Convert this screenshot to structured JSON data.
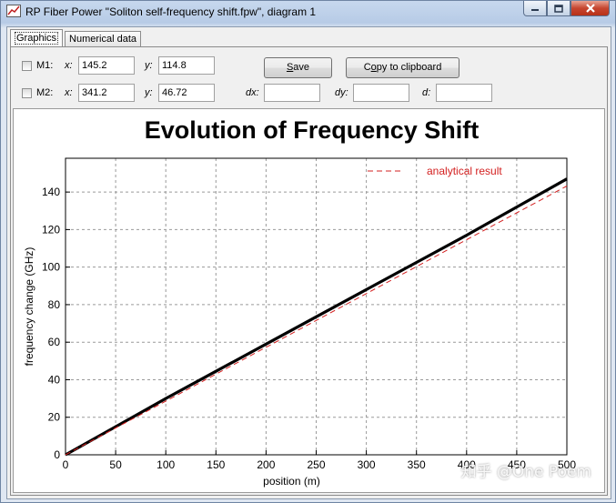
{
  "window": {
    "title": "RP Fiber Power \"Soliton self-frequency shift.fpw\", diagram 1",
    "icon": "app-icon",
    "buttons": [
      "minimize-icon",
      "maximize-icon",
      "close-icon"
    ]
  },
  "tabs": [
    {
      "label": "Graphics",
      "active": true
    },
    {
      "label": "Numerical data",
      "active": false
    }
  ],
  "markers": {
    "m1": {
      "label": "M1:",
      "x_label": "x:",
      "x": "145.2",
      "y_label": "y:",
      "y": "114.8",
      "checked": false
    },
    "m2": {
      "label": "M2:",
      "x_label": "x:",
      "x": "341.2",
      "y_label": "y:",
      "y": "46.72",
      "checked": false
    }
  },
  "deltas": {
    "dx_label": "dx:",
    "dx": "",
    "dy_label": "dy:",
    "dy": "",
    "d_label": "d:",
    "d": ""
  },
  "buttons": {
    "save_underlined": "S",
    "save_rest": "ave",
    "copy_prefix": "C",
    "copy_underlined": "o",
    "copy_rest": "py to clipboard"
  },
  "watermark": "知乎 @One Poem",
  "chart_data": {
    "type": "line",
    "title": "Evolution of Frequency Shift",
    "xlabel": "position (m)",
    "ylabel": "frequency change (GHz)",
    "xlim": [
      0,
      500
    ],
    "ylim": [
      0,
      158
    ],
    "xticks": [
      0,
      50,
      100,
      150,
      200,
      250,
      300,
      350,
      400,
      450,
      500
    ],
    "yticks": [
      0,
      20,
      40,
      60,
      80,
      100,
      120,
      140
    ],
    "grid": true,
    "legend_position": "top-right",
    "series": [
      {
        "name": "",
        "color": "#000000",
        "style": "solid",
        "x": [
          0,
          50,
          100,
          150,
          200,
          250,
          300,
          350,
          400,
          450,
          500
        ],
        "y": [
          0,
          15.0,
          30.0,
          44.5,
          59.0,
          73.5,
          88.0,
          102.5,
          117.0,
          132.0,
          147.0
        ]
      },
      {
        "name": "analytical result",
        "color": "#d32020",
        "style": "dashed",
        "x": [
          0,
          50,
          100,
          150,
          200,
          250,
          300,
          350,
          400,
          450,
          500
        ],
        "y": [
          0,
          14.3,
          28.6,
          43.0,
          57.3,
          71.6,
          85.9,
          100.3,
          114.6,
          128.9,
          143.2
        ]
      }
    ]
  }
}
